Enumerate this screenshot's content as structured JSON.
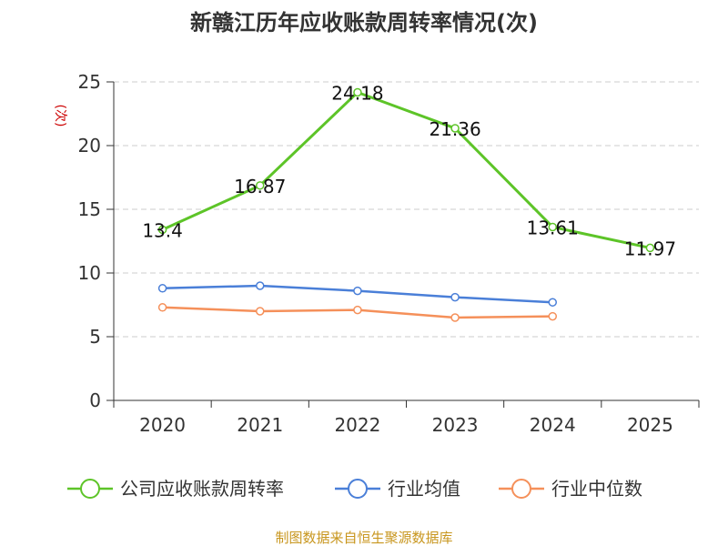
{
  "chart_data": {
    "type": "line",
    "title": "新赣江历年应收账款周转率情况(次)",
    "ylabel": "(次)",
    "xlabel": "",
    "categories": [
      "2020",
      "2021",
      "2022",
      "2023",
      "2024",
      "2025"
    ],
    "y_ticks": [
      "0",
      "5",
      "10",
      "15",
      "20",
      "25"
    ],
    "ylim": [
      0,
      25
    ],
    "grid": "horizontal dashed",
    "legend_position": "bottom",
    "series": [
      {
        "name": "公司应收账款周转率",
        "color": "#5dc428",
        "values": [
          13.4,
          16.87,
          24.18,
          21.36,
          13.61,
          11.97
        ],
        "labels": [
          "13.4",
          "16.87",
          "24.18",
          "21.36",
          "13.61",
          "11.97"
        ]
      },
      {
        "name": "行业均值",
        "color": "#4a7fd8",
        "values": [
          8.8,
          9.0,
          8.6,
          8.1,
          7.7,
          null
        ]
      },
      {
        "name": "行业中位数",
        "color": "#f5905a",
        "values": [
          7.3,
          7.0,
          7.1,
          6.5,
          6.6,
          null
        ]
      }
    ]
  },
  "source": "制图数据来自恒生聚源数据库"
}
